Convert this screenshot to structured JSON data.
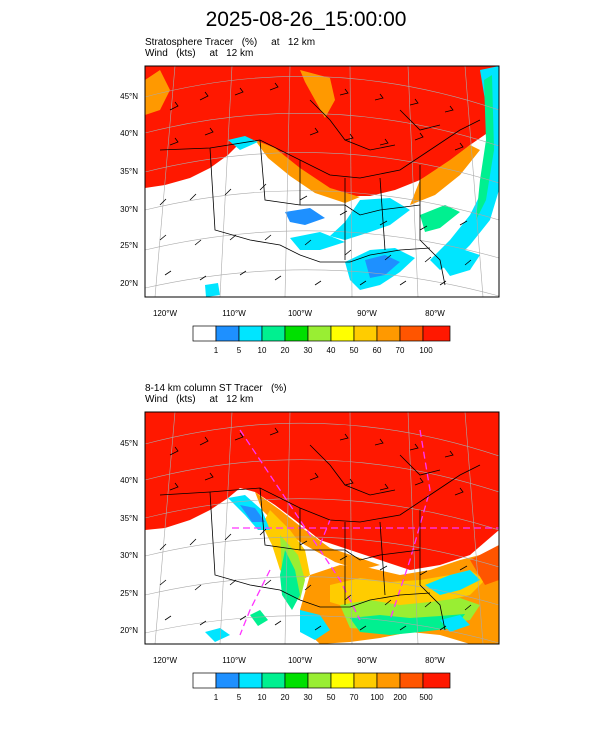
{
  "title": "2025-08-26_15:00:00",
  "panels": [
    {
      "line1": "Stratosphere Tracer   (%)     at   12 km",
      "line2": "Wind   (kts)     at   12 km",
      "lat_labels": [
        "45°N",
        "40°N",
        "35°N",
        "30°N",
        "25°N",
        "20°N"
      ],
      "lon_labels": [
        "120°W",
        "110°W",
        "100°W",
        "90°W",
        "80°W"
      ],
      "colorbar_labels": [
        "1",
        "5",
        "10",
        "20",
        "30",
        "40",
        "50",
        "60",
        "70",
        "100"
      ]
    },
    {
      "line1": "8-14 km column ST Tracer   (%)",
      "line2": "Wind   (kts)     at   12 km",
      "lat_labels": [
        "45°N",
        "40°N",
        "35°N",
        "30°N",
        "25°N",
        "20°N"
      ],
      "lon_labels": [
        "120°W",
        "110°W",
        "100°W",
        "90°W",
        "80°W"
      ],
      "colorbar_labels": [
        "1",
        "5",
        "10",
        "20",
        "30",
        "50",
        "70",
        "100",
        "200",
        "500"
      ]
    }
  ],
  "colors": [
    "#ffffff",
    "#1e90ff",
    "#00e5ff",
    "#00f090",
    "#00e000",
    "#99ee33",
    "#ffff00",
    "#ffcc00",
    "#ff9900",
    "#ff5500",
    "#ff1800"
  ]
}
